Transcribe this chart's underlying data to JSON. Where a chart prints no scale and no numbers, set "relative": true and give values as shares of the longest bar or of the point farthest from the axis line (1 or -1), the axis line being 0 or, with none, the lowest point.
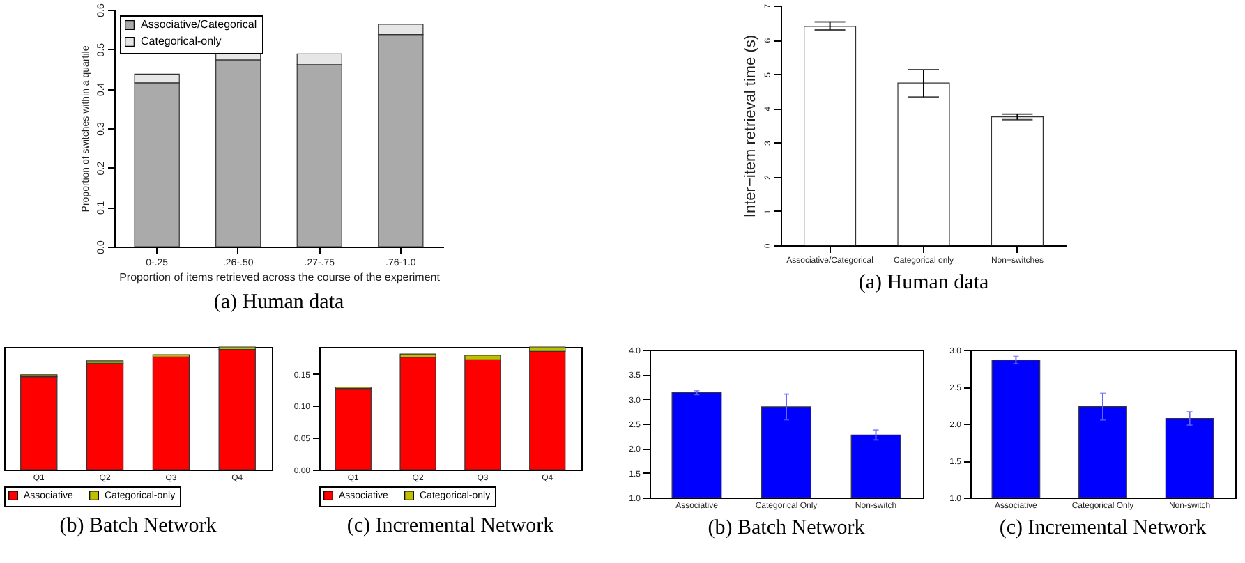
{
  "chart_data": [
    {
      "type": "bar",
      "title": "(a) Human data",
      "xlabel": "Proportion of items retrieved across the course of the experiment",
      "ylabel": "Proportion of switches within a quartile",
      "categories": [
        "0-.25",
        ".26-.50",
        ".27-.75",
        ".76-1.0"
      ],
      "stacked": true,
      "legend": "top left",
      "ylim": [
        0,
        0.6
      ],
      "yticks": [
        {
          "value": 0,
          "label": "0.0"
        },
        0.1,
        0.2,
        0.3,
        0.4,
        0.5,
        0.6
      ],
      "series": [
        {
          "name": "Associative/Categorical",
          "color": "#aaaaaa",
          "values": [
            0.415,
            0.473,
            0.461,
            0.537
          ]
        },
        {
          "name": "Categorical-only",
          "color": "#e6e6e6",
          "values": [
            0.022,
            0.023,
            0.027,
            0.026
          ]
        }
      ]
    },
    {
      "type": "bar",
      "title": "(a) Human data",
      "ylabel": "Inter−item retrieval time (s)",
      "categories": [
        "Associative/Categorical",
        "Categorical only",
        "Non−switches"
      ],
      "color": "#ffffff",
      "values": [
        6.39,
        4.74,
        3.75
      ],
      "errors": [
        [
          6.29,
          6.52
        ],
        [
          4.33,
          5.13
        ],
        [
          3.67,
          3.83
        ]
      ],
      "ylim": [
        0,
        7
      ],
      "yticks": [
        0,
        1,
        2,
        3,
        4,
        5,
        6,
        7
      ]
    },
    {
      "type": "bar",
      "title": "(b) Batch Network",
      "categories": [
        "Q1",
        "Q2",
        "Q3",
        "Q4"
      ],
      "stacked": true,
      "relative": true,
      "legend": "bottom",
      "series": [
        {
          "name": "Associative",
          "color": "#ff0000",
          "values": [
            0.758,
            0.868,
            0.918,
            0.98
          ]
        },
        {
          "name": "Categorical-only",
          "color": "#bfbf00",
          "values": [
            0.016,
            0.019,
            0.019,
            0.02
          ]
        }
      ]
    },
    {
      "type": "bar",
      "title": "(c) Incremental Network",
      "categories": [
        "Q1",
        "Q2",
        "Q3",
        "Q4"
      ],
      "stacked": true,
      "legend": "bottom",
      "ylim": [
        0,
        0.192
      ],
      "yticks": [
        {
          "value": 0,
          "label": "0.00"
        },
        0.05,
        {
          "value": 0.1,
          "label": "0.10"
        },
        0.15
      ],
      "series": [
        {
          "name": "Associative",
          "color": "#ff0000",
          "values": [
            0.127,
            0.176,
            0.172,
            0.185
          ]
        },
        {
          "name": "Categorical-only",
          "color": "#bfbf00",
          "values": [
            0.002,
            0.005,
            0.007,
            0.007
          ]
        }
      ]
    },
    {
      "type": "bar",
      "title": "(b) Batch Network",
      "categories": [
        "Associative",
        "Categorical Only",
        "Non-switch"
      ],
      "color": "#0000ff",
      "values": [
        3.13,
        2.84,
        2.27
      ],
      "errors": [
        0.04,
        0.26,
        0.1
      ],
      "ylim": [
        1,
        4
      ],
      "yticks": [
        {
          "value": 1,
          "label": "1.0"
        },
        1.5,
        {
          "value": 2,
          "label": "2.0"
        },
        2.5,
        {
          "value": 3,
          "label": "3.0"
        },
        3.5,
        {
          "value": 4,
          "label": "4.0"
        }
      ]
    },
    {
      "type": "bar",
      "title": "(c) Incremental Network",
      "categories": [
        "Associative",
        "Categorical Only",
        "Non-switch"
      ],
      "color": "#0000ff",
      "values": [
        2.86,
        2.23,
        2.07
      ],
      "errors": [
        0.05,
        0.18,
        0.09
      ],
      "ylim": [
        1,
        3
      ],
      "yticks": [
        {
          "value": 1,
          "label": "1.0"
        },
        1.5,
        {
          "value": 2,
          "label": "2.0"
        },
        2.5,
        {
          "value": 3,
          "label": "3.0"
        }
      ]
    }
  ]
}
